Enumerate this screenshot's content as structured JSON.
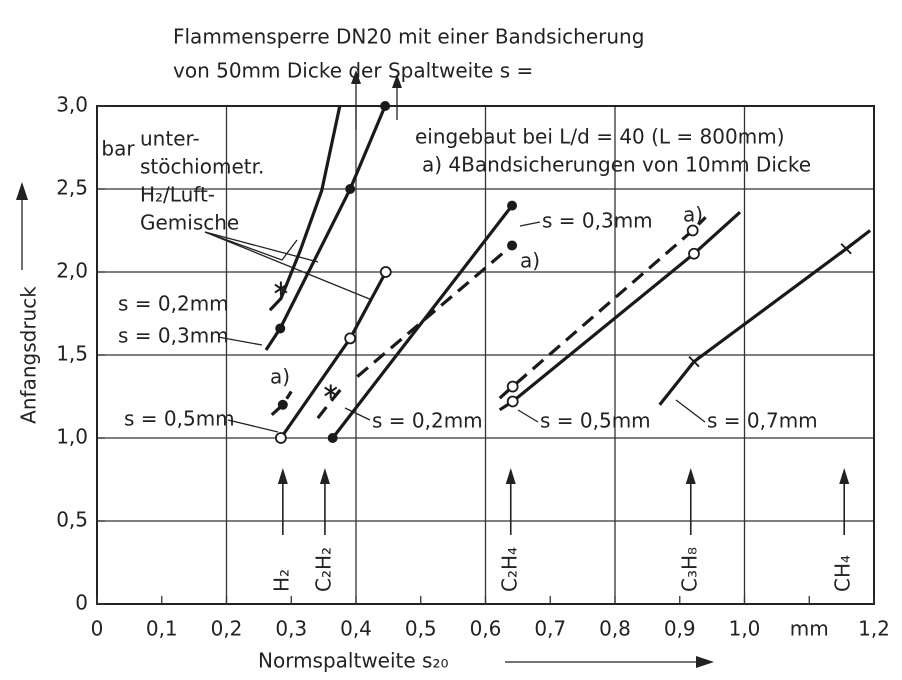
{
  "chart_data": {
    "type": "line",
    "title": [
      "Flammensperre DN20 mit einer Bandsicherung",
      "von 50mm Dicke der Spaltweite s ="
    ],
    "xlabel": "Normspaltweite s₂₀",
    "ylabel": "Anfangsdruck",
    "y_unit": "bar",
    "xlim": [
      0,
      1.2
    ],
    "ylim": [
      0,
      3.0
    ],
    "xticks": [
      0,
      {
        "value": 0.1,
        "label": "0,1"
      },
      {
        "value": 0.2,
        "label": "0,2"
      },
      {
        "value": 0.3,
        "label": "0,3"
      },
      {
        "value": 0.4,
        "label": "0,4"
      },
      {
        "value": 0.5,
        "label": "0,5"
      },
      {
        "value": 0.6,
        "label": "0,6"
      },
      {
        "value": 0.7,
        "label": "0,7"
      },
      {
        "value": 0.8,
        "label": "0,8"
      },
      {
        "value": 0.9,
        "label": "0,9"
      },
      {
        "value": 1.0,
        "label": "1,0"
      },
      {
        "value": 1.1,
        "label": "mm"
      },
      {
        "value": 1.2,
        "label": "1,2"
      }
    ],
    "yticks": [
      0,
      {
        "value": 0.5,
        "label": "0,5"
      },
      {
        "value": 1.0,
        "label": "1,0"
      },
      {
        "value": 1.5,
        "label": "1,5"
      },
      {
        "value": 2.0,
        "label": "2,0"
      },
      {
        "value": 2.5,
        "label": "2,5"
      },
      {
        "value": 3.0,
        "label": "3,0"
      }
    ],
    "xgrid": [
      0.2,
      0.4,
      0.6,
      0.8,
      1.0
    ],
    "ygrid": [
      0.5,
      1.0,
      1.5,
      2.0,
      2.5
    ],
    "color": "#1a1a1a",
    "series": [
      {
        "dashed": false,
        "x": [
          0.267,
          0.284,
          0.314,
          0.347,
          0.375
        ],
        "values": [
          1.77,
          1.84,
          2.13,
          2.49,
          3.0
        ],
        "markers": [
          null,
          "star",
          null,
          null,
          null
        ]
      },
      {
        "dashed": false,
        "x": [
          0.261,
          0.283,
          0.391,
          0.445
        ],
        "values": [
          1.53,
          1.66,
          2.5,
          3.0
        ],
        "markers": [
          null,
          "dot",
          "dot",
          "dot"
        ]
      },
      {
        "dashed": true,
        "x": [
          0.27,
          0.287,
          0.3
        ],
        "values": [
          1.14,
          1.2,
          1.28
        ],
        "markers": [
          null,
          "dot",
          null
        ]
      },
      {
        "dashed": false,
        "x": [
          0.284,
          0.391,
          0.446
        ],
        "values": [
          1.0,
          1.6,
          2.0
        ],
        "markers": [
          "circle",
          "circle",
          "circle"
        ]
      },
      {
        "dashed": true,
        "x": [
          0.341,
          0.361,
          0.38
        ],
        "values": [
          1.12,
          1.22,
          1.31
        ],
        "markers": [
          null,
          "star",
          null
        ]
      },
      {
        "dashed": true,
        "x": [
          0.402,
          0.641
        ],
        "values": [
          1.37,
          2.16
        ],
        "markers": [
          null,
          "dot"
        ]
      },
      {
        "dashed": false,
        "x": [
          0.364,
          0.641
        ],
        "values": [
          1.0,
          2.4
        ],
        "markers": [
          "dot",
          "dot"
        ]
      },
      {
        "dashed": true,
        "x": [
          0.622,
          0.642,
          0.92,
          0.94
        ],
        "values": [
          1.24,
          1.31,
          2.25,
          2.33
        ],
        "markers": [
          null,
          "circle",
          "circle",
          null
        ]
      },
      {
        "dashed": false,
        "x": [
          0.622,
          0.642,
          0.922,
          0.993
        ],
        "values": [
          1.17,
          1.22,
          2.11,
          2.36
        ],
        "markers": [
          null,
          "circle",
          "circle",
          null
        ]
      },
      {
        "dashed": false,
        "x": [
          0.869,
          0.922,
          1.157,
          1.194
        ],
        "values": [
          1.2,
          1.46,
          2.14,
          2.25
        ],
        "markers": [
          null,
          "cross",
          "cross",
          null
        ]
      }
    ],
    "gases": [
      {
        "label": "H₂",
        "x": 0.287
      },
      {
        "label": "C₂H₂",
        "x": 0.352
      },
      {
        "label": "C₂H₄",
        "x": 0.639
      },
      {
        "label": "C₃H₈",
        "x": 0.917
      },
      {
        "label": "CH₄",
        "x": 1.154
      }
    ],
    "annotations": [
      "unter-",
      "stöchiometr.",
      "H₂/Luft-",
      "Gemische",
      "eingebaut bei L/d = 40 (L = 800mm)",
      "a) 4Bandsicherungen von 10mm Dicke",
      "s = 0,2mm",
      "s = 0,3mm",
      "a)",
      "s = 0,5mm",
      "s = 0,2mm",
      "s = 0,3mm",
      "a)",
      "a)",
      "s = 0,5mm",
      "s = 0,7mm"
    ]
  }
}
